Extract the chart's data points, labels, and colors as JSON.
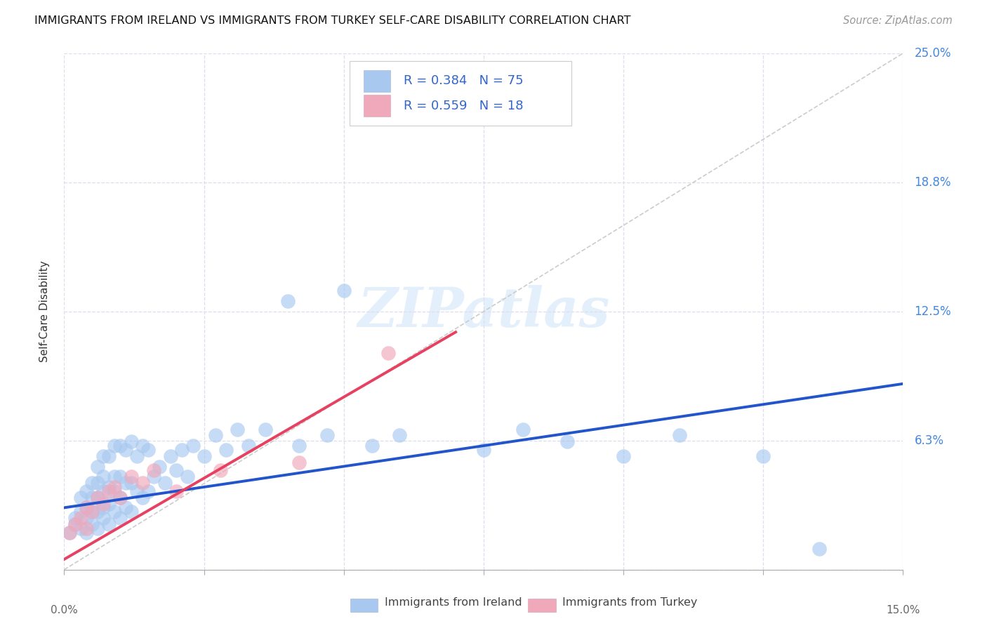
{
  "title": "IMMIGRANTS FROM IRELAND VS IMMIGRANTS FROM TURKEY SELF-CARE DISABILITY CORRELATION CHART",
  "source": "Source: ZipAtlas.com",
  "ylabel": "Self-Care Disability",
  "xlim": [
    0.0,
    0.15
  ],
  "ylim": [
    0.0,
    0.25
  ],
  "ytick_vals": [
    0.0,
    0.0625,
    0.125,
    0.1875,
    0.25
  ],
  "ytick_labels": [
    "",
    "6.3%",
    "12.5%",
    "18.8%",
    "25.0%"
  ],
  "xtick_vals": [
    0.0,
    0.025,
    0.05,
    0.075,
    0.1,
    0.125,
    0.15
  ],
  "legend_ireland_R": "0.384",
  "legend_ireland_N": "75",
  "legend_turkey_R": "0.559",
  "legend_turkey_N": "18",
  "ireland_color": "#a8c8f0",
  "turkey_color": "#f0a8bb",
  "ireland_line_color": "#2255cc",
  "turkey_line_color": "#e84060",
  "diag_line_color": "#cccccc",
  "grid_color": "#ddddee",
  "watermark_text": "ZIPatlas",
  "background_color": "#ffffff",
  "ireland_x": [
    0.001,
    0.002,
    0.002,
    0.003,
    0.003,
    0.003,
    0.004,
    0.004,
    0.004,
    0.004,
    0.005,
    0.005,
    0.005,
    0.005,
    0.006,
    0.006,
    0.006,
    0.006,
    0.006,
    0.007,
    0.007,
    0.007,
    0.007,
    0.007,
    0.008,
    0.008,
    0.008,
    0.008,
    0.009,
    0.009,
    0.009,
    0.009,
    0.01,
    0.01,
    0.01,
    0.01,
    0.011,
    0.011,
    0.011,
    0.012,
    0.012,
    0.012,
    0.013,
    0.013,
    0.014,
    0.014,
    0.015,
    0.015,
    0.016,
    0.017,
    0.018,
    0.019,
    0.02,
    0.021,
    0.022,
    0.023,
    0.025,
    0.027,
    0.029,
    0.031,
    0.033,
    0.036,
    0.04,
    0.042,
    0.047,
    0.05,
    0.055,
    0.06,
    0.075,
    0.082,
    0.09,
    0.1,
    0.11,
    0.125,
    0.135
  ],
  "ireland_y": [
    0.018,
    0.022,
    0.025,
    0.02,
    0.028,
    0.035,
    0.018,
    0.025,
    0.03,
    0.038,
    0.022,
    0.028,
    0.035,
    0.042,
    0.02,
    0.028,
    0.035,
    0.042,
    0.05,
    0.025,
    0.03,
    0.038,
    0.045,
    0.055,
    0.022,
    0.032,
    0.04,
    0.055,
    0.028,
    0.038,
    0.045,
    0.06,
    0.025,
    0.035,
    0.045,
    0.06,
    0.03,
    0.042,
    0.058,
    0.028,
    0.042,
    0.062,
    0.038,
    0.055,
    0.035,
    0.06,
    0.038,
    0.058,
    0.045,
    0.05,
    0.042,
    0.055,
    0.048,
    0.058,
    0.045,
    0.06,
    0.055,
    0.065,
    0.058,
    0.068,
    0.06,
    0.068,
    0.13,
    0.06,
    0.065,
    0.135,
    0.06,
    0.065,
    0.058,
    0.068,
    0.062,
    0.055,
    0.065,
    0.055,
    0.01
  ],
  "turkey_x": [
    0.001,
    0.002,
    0.003,
    0.004,
    0.004,
    0.005,
    0.006,
    0.007,
    0.008,
    0.009,
    0.01,
    0.012,
    0.014,
    0.016,
    0.02,
    0.028,
    0.042,
    0.058
  ],
  "turkey_y": [
    0.018,
    0.022,
    0.025,
    0.02,
    0.03,
    0.028,
    0.035,
    0.032,
    0.038,
    0.04,
    0.035,
    0.045,
    0.042,
    0.048,
    0.038,
    0.048,
    0.052,
    0.105
  ],
  "ireland_line_x": [
    0.0,
    0.15
  ],
  "ireland_line_y": [
    0.03,
    0.09
  ],
  "turkey_line_x": [
    0.0,
    0.07
  ],
  "turkey_line_y": [
    0.005,
    0.115
  ]
}
